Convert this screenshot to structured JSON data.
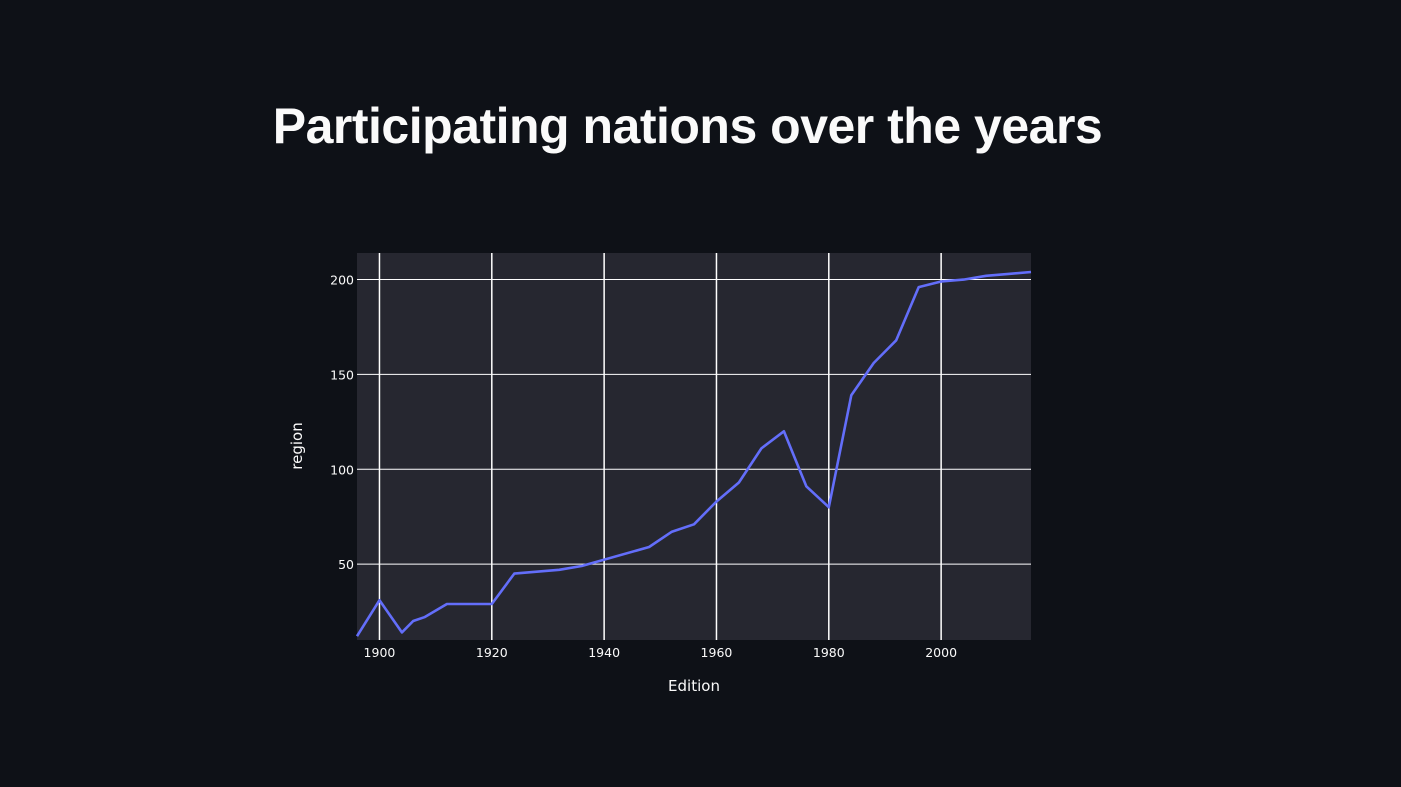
{
  "page": {
    "title": "Participating nations over the years"
  },
  "colors": {
    "background": "#0e1117",
    "plot_background": "#262730",
    "line": "#636efa",
    "grid": "#ffffff",
    "text": "#fafafa"
  },
  "chart_data": {
    "type": "line",
    "title": "",
    "xlabel": "Edition",
    "ylabel": "region",
    "xlim": [
      1896,
      2016
    ],
    "ylim": [
      10,
      214
    ],
    "xticks": [
      1900,
      1920,
      1940,
      1960,
      1980,
      2000
    ],
    "yticks": [
      50,
      100,
      150,
      200
    ],
    "grid": true,
    "x": [
      1896,
      1900,
      1904,
      1906,
      1908,
      1912,
      1920,
      1924,
      1928,
      1932,
      1936,
      1948,
      1952,
      1956,
      1960,
      1964,
      1968,
      1972,
      1976,
      1980,
      1984,
      1988,
      1992,
      1996,
      2000,
      2004,
      2008,
      2012,
      2016
    ],
    "series": [
      {
        "values": [
          12,
          31,
          14,
          20,
          22,
          29,
          29,
          45,
          46,
          47,
          49,
          59,
          67,
          71,
          83,
          93,
          111,
          120,
          91,
          80,
          139,
          156,
          168,
          196,
          199,
          200,
          202,
          203,
          204
        ]
      }
    ]
  }
}
